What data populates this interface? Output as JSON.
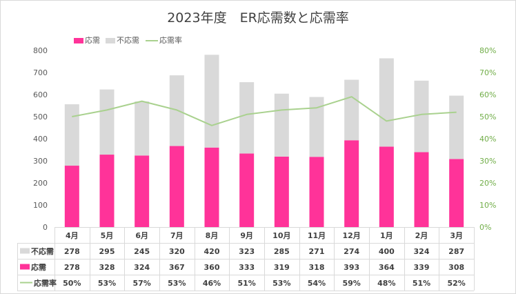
{
  "chart_data": {
    "type": "bar",
    "title": "2023年度　ER応需数と応需率",
    "categories": [
      "4月",
      "5月",
      "6月",
      "7月",
      "8月",
      "9月",
      "10月",
      "11月",
      "12月",
      "1月",
      "2月",
      "3月"
    ],
    "series": [
      {
        "name": "応需",
        "kind": "stacked-bar",
        "color": "#ff3399",
        "values": [
          278,
          328,
          324,
          367,
          360,
          333,
          319,
          318,
          393,
          364,
          339,
          308
        ]
      },
      {
        "name": "不応需",
        "kind": "stacked-bar",
        "color": "#d9d9d9",
        "values": [
          278,
          295,
          245,
          320,
          420,
          323,
          285,
          271,
          274,
          400,
          324,
          287
        ]
      },
      {
        "name": "応需率",
        "kind": "line",
        "axis": "right",
        "color": "#a9d18e",
        "values": [
          50,
          53,
          57,
          53,
          46,
          51,
          53,
          54,
          59,
          48,
          51,
          52
        ],
        "labels": [
          "50%",
          "53%",
          "57%",
          "53%",
          "46%",
          "51%",
          "53%",
          "54%",
          "59%",
          "48%",
          "51%",
          "52%"
        ]
      }
    ],
    "ylim": [
      0,
      800
    ],
    "yticks": [
      0,
      100,
      200,
      300,
      400,
      500,
      600,
      700,
      800
    ],
    "y2lim": [
      0,
      80
    ],
    "y2ticks": [
      "0%",
      "10%",
      "20%",
      "30%",
      "40%",
      "50%",
      "60%",
      "70%",
      "80%"
    ],
    "y2_color": "#70ad47",
    "legend_position": "top-left",
    "legend_order": [
      "応需",
      "不応需",
      "応需率"
    ],
    "data_table": {
      "row_order": [
        "不応需",
        "応需",
        "応需率"
      ]
    },
    "grid": false
  }
}
